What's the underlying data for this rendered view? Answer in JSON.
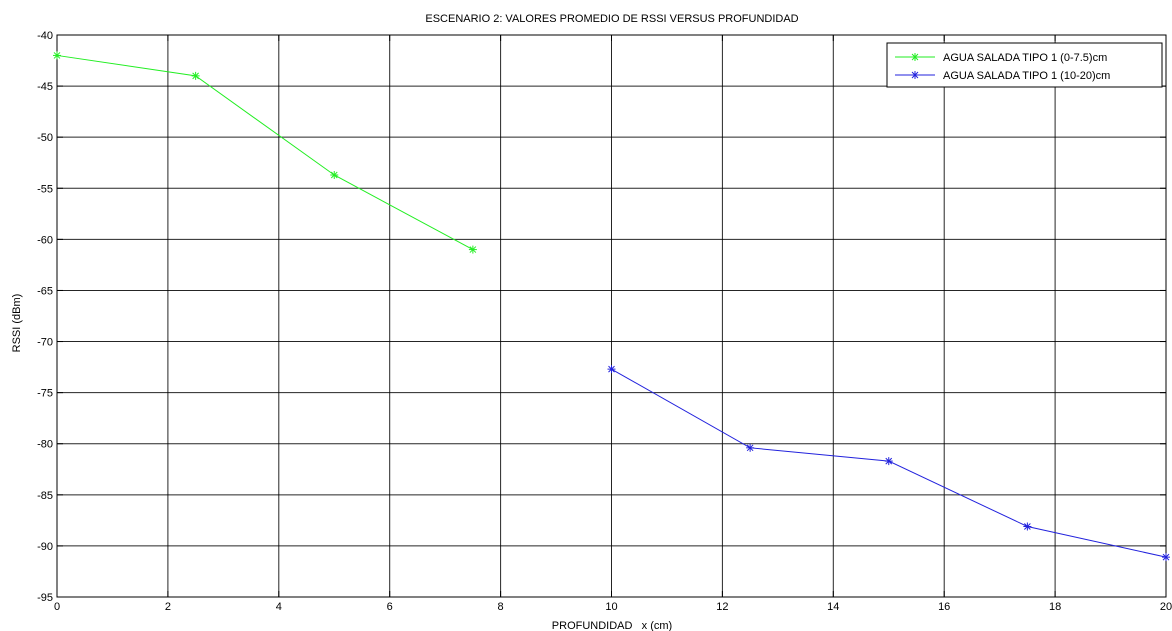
{
  "chart_data": {
    "type": "line",
    "title": "ESCENARIO 2: VALORES PROMEDIO DE RSSI VERSUS PROFUNDIDAD",
    "xlabel": "PROFUNDIDAD   x (cm)",
    "ylabel": "RSSI (dBm)",
    "xlim": [
      0,
      20
    ],
    "ylim": [
      -95,
      -40
    ],
    "xticks": [
      0,
      2,
      4,
      6,
      8,
      10,
      12,
      14,
      16,
      18,
      20
    ],
    "yticks": [
      -40,
      -45,
      -50,
      -55,
      -60,
      -65,
      -70,
      -75,
      -80,
      -85,
      -90,
      -95
    ],
    "grid": true,
    "legend_position": "top-right",
    "marker": "asterisk",
    "series": [
      {
        "name": "AGUA SALADA TIPO 1 (0-7.5)cm",
        "color": "#22ee22",
        "x": [
          0,
          2.5,
          5,
          7.5
        ],
        "y": [
          -42,
          -44,
          -53.7,
          -61
        ]
      },
      {
        "name": "AGUA SALADA TIPO 1 (10-20)cm",
        "color": "#2222dd",
        "x": [
          10,
          12.5,
          15,
          17.5,
          20
        ],
        "y": [
          -72.7,
          -80.4,
          -81.7,
          -88.1,
          -91.1
        ]
      }
    ]
  }
}
